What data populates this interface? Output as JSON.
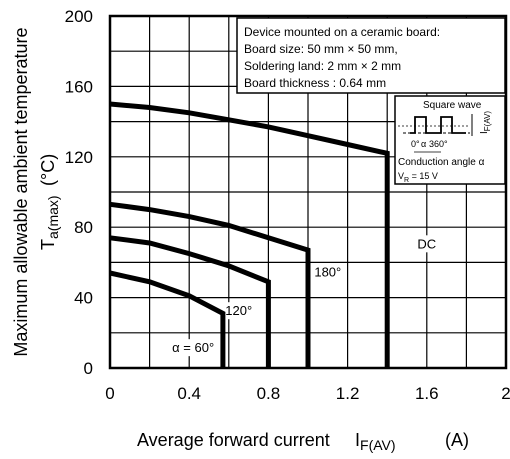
{
  "chart_data": {
    "type": "line",
    "title": "",
    "ylabel": "Maximum allowable ambient temperature",
    "ylabel_symbol_main": "T",
    "ylabel_symbol_sub": "a(max)",
    "ylabel_unit": "(°C)",
    "xlabel_main": "Average forward current",
    "xlabel_symbol_main": "I",
    "xlabel_symbol_sub": "F(AV)",
    "xlabel_unit": "(A)",
    "xlim": [
      0,
      2
    ],
    "ylim": [
      0,
      200
    ],
    "x_ticks": [
      0,
      0.4,
      0.8,
      1.2,
      1.6,
      2
    ],
    "x_tick_labels": [
      "0",
      "0.4",
      "0.8",
      "1.2",
      "1.6",
      "2"
    ],
    "y_ticks": [
      0,
      40,
      80,
      120,
      160,
      200
    ],
    "y_tick_labels": [
      "0",
      "40",
      "80",
      "120",
      "160",
      "200"
    ],
    "x_minor_step": 0.2,
    "y_minor_step": 20,
    "grid": true,
    "series": [
      {
        "name": "DC",
        "label_at": [
          1.6,
          68
        ],
        "x": [
          0,
          0.2,
          0.4,
          0.6,
          0.8,
          1.0,
          1.2,
          1.4,
          1.4
        ],
        "y": [
          150,
          148,
          145,
          141,
          137,
          132,
          127,
          122,
          0
        ]
      },
      {
        "name": "180°",
        "label_at": [
          1.1,
          52
        ],
        "x": [
          0,
          0.2,
          0.4,
          0.6,
          0.8,
          1.0,
          1.0
        ],
        "y": [
          93,
          90,
          86,
          81,
          74,
          67,
          0
        ]
      },
      {
        "name": "120°",
        "label_at": [
          0.65,
          30
        ],
        "x": [
          0,
          0.2,
          0.4,
          0.6,
          0.8,
          0.8
        ],
        "y": [
          74,
          71,
          65,
          58,
          49,
          0
        ]
      },
      {
        "name": "α = 60°",
        "label_at": [
          0.42,
          9
        ],
        "x": [
          0,
          0.2,
          0.4,
          0.57,
          0.57
        ],
        "y": [
          54,
          49,
          41,
          31,
          0
        ]
      }
    ],
    "annotation_lines": [
      "Device mounted on a ceramic board:",
      "Board size: 50 mm × 50 mm,",
      "Soldering land: 2 mm  × 2 mm",
      "Board thickness : 0.64 mm"
    ],
    "inset": {
      "title": "Square wave",
      "zero_label": "0°",
      "alpha_label": "α",
      "period_label": "360°",
      "current_symbol": "I",
      "current_sub": "F(AV)",
      "conduction_label": "Conduction angle α",
      "voltage_symbol": "V",
      "voltage_sub": "R",
      "voltage_value": " = 15 V"
    }
  }
}
